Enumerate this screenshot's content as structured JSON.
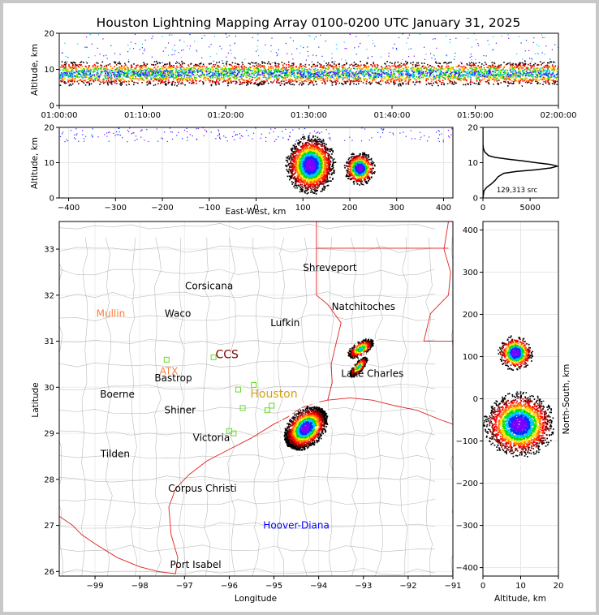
{
  "title": "Houston Lightning Mapping Array 0100-0200 UTC January 31, 2025",
  "colors": {
    "frame_border": "#c8c8c8",
    "state_border": "#e02020",
    "county_border": "#bbbbbb",
    "rainbow": [
      "#7a00ff",
      "#0030ff",
      "#00c8ff",
      "#00e000",
      "#ffe000",
      "#ff7000",
      "#ff0000",
      "#800000",
      "#000000",
      "#ffffff"
    ]
  },
  "chart_data": [
    {
      "type": "scatter",
      "panel": "altitude-time",
      "ylabel": "Altitude, km",
      "ylim": [
        0,
        20
      ],
      "y_ticks": [
        "0",
        "10",
        "20"
      ],
      "x_ticks": [
        "01:00:00",
        "01:10:00",
        "01:20:00",
        "01:30:00",
        "01:40:00",
        "01:50:00",
        "02:00:00"
      ],
      "xlim": [
        "01:00:00",
        "02:00:00"
      ],
      "band_center_km": 9,
      "band_halfwidth_km": 3,
      "sparse_top_km": 20
    },
    {
      "type": "scatter",
      "panel": "altitude-east-west",
      "xlabel": "East-West, km",
      "ylabel": "Altitude, km",
      "xlim": [
        -420,
        420
      ],
      "ylim": [
        0,
        20
      ],
      "x_ticks": [
        "−400",
        "−300",
        "−200",
        "−100",
        "0",
        "100",
        "200",
        "300",
        "400"
      ],
      "y_ticks": [
        "0",
        "10",
        "20"
      ],
      "clusters": [
        {
          "x_center_km": 115,
          "x_halfwidth_km": 45,
          "z_center_km": 9.5,
          "z_halfwidth_km": 7
        },
        {
          "x_center_km": 220,
          "x_halfwidth_km": 28,
          "z_center_km": 8.5,
          "z_halfwidth_km": 4
        }
      ]
    },
    {
      "type": "line",
      "panel": "altitude-histogram",
      "xlim": [
        0,
        8000
      ],
      "ylim": [
        0,
        20
      ],
      "x_ticks": [
        "0",
        "5000"
      ],
      "y_ticks": [
        "0",
        "10",
        "20"
      ],
      "annotation": "129,313 src",
      "altitude_km": [
        0,
        2,
        3,
        4,
        5,
        6,
        7,
        7.5,
        8,
        8.5,
        9,
        9.5,
        10,
        10.5,
        11,
        11.5,
        12,
        13,
        14,
        15,
        16,
        20
      ],
      "source_count": [
        0,
        100,
        400,
        900,
        1300,
        1600,
        2200,
        3500,
        5600,
        7200,
        7900,
        7200,
        5600,
        4200,
        2700,
        1300,
        600,
        200,
        50,
        10,
        0,
        0
      ]
    },
    {
      "type": "scatter",
      "panel": "plan-view-map",
      "xlabel": "Longitude",
      "ylabel": "Latitude",
      "xlim": [
        -99.8,
        -91
      ],
      "ylim": [
        25.9,
        33.6
      ],
      "x_ticks": [
        "−99",
        "−98",
        "−97",
        "−96",
        "−95",
        "−94",
        "−93",
        "−92",
        "−91"
      ],
      "y_ticks": [
        "26",
        "27",
        "28",
        "29",
        "30",
        "31",
        "32",
        "33"
      ],
      "cities": [
        {
          "name": "Shreveport",
          "lon": -93.75,
          "lat": 32.6,
          "color": "#000000"
        },
        {
          "name": "Corsicana",
          "lon": -96.45,
          "lat": 32.2,
          "color": "#000000"
        },
        {
          "name": "Natchitoches",
          "lon": -93.0,
          "lat": 31.75,
          "color": "#000000"
        },
        {
          "name": "Mullin",
          "lon": -98.65,
          "lat": 31.6,
          "color": "#ff8040"
        },
        {
          "name": "Waco",
          "lon": -97.15,
          "lat": 31.6,
          "color": "#000000"
        },
        {
          "name": "Lufkin",
          "lon": -94.75,
          "lat": 31.4,
          "color": "#000000"
        },
        {
          "name": "CCS",
          "lon": -96.05,
          "lat": 30.7,
          "color": "#800000"
        },
        {
          "name": "ATX",
          "lon": -97.35,
          "lat": 30.35,
          "color": "#ff8040"
        },
        {
          "name": "Bastrop",
          "lon": -97.25,
          "lat": 30.2,
          "color": "#000000"
        },
        {
          "name": "Lake Charles",
          "lon": -92.8,
          "lat": 30.3,
          "color": "#000000"
        },
        {
          "name": "Houston",
          "lon": -95.0,
          "lat": 29.85,
          "color": "#d4a017"
        },
        {
          "name": "Boerne",
          "lon": -98.5,
          "lat": 29.85,
          "color": "#000000"
        },
        {
          "name": "Shiner",
          "lon": -97.1,
          "lat": 29.5,
          "color": "#000000"
        },
        {
          "name": "Victoria",
          "lon": -96.4,
          "lat": 28.9,
          "color": "#000000"
        },
        {
          "name": "Tilden",
          "lon": -98.55,
          "lat": 28.55,
          "color": "#000000"
        },
        {
          "name": "Corpus Christi",
          "lon": -96.6,
          "lat": 27.8,
          "color": "#000000"
        },
        {
          "name": "Hoover-Diana",
          "lon": -94.5,
          "lat": 27.0,
          "color": "#0000ff"
        },
        {
          "name": "Port Isabel",
          "lon": -96.75,
          "lat": 26.15,
          "color": "#000000"
        }
      ],
      "stations": [
        {
          "lon": -97.4,
          "lat": 30.6
        },
        {
          "lon": -96.35,
          "lat": 30.65
        },
        {
          "lon": -95.8,
          "lat": 29.95
        },
        {
          "lon": -95.45,
          "lat": 30.05
        },
        {
          "lon": -95.15,
          "lat": 29.5
        },
        {
          "lon": -95.05,
          "lat": 29.6
        },
        {
          "lon": -95.7,
          "lat": 29.55
        },
        {
          "lon": -95.9,
          "lat": 29.0
        },
        {
          "lon": -96.0,
          "lat": 29.05
        }
      ],
      "clusters": [
        {
          "lon_start": -94.75,
          "lat_start": 28.7,
          "lon_end": -93.85,
          "lat_end": 29.55,
          "width_deg": 0.42
        },
        {
          "lon_start": -93.4,
          "lat_start": 30.65,
          "lon_end": -92.75,
          "lat_end": 31.05,
          "width_deg": 0.18
        },
        {
          "lon_start": -93.35,
          "lat_start": 30.2,
          "lon_end": -92.9,
          "lat_end": 30.7,
          "width_deg": 0.12
        }
      ]
    },
    {
      "type": "scatter",
      "panel": "north-south-altitude",
      "xlabel": "Altitude, km",
      "ylabel": "North-South, km",
      "xlim": [
        0,
        20
      ],
      "ylim": [
        -420,
        420
      ],
      "x_ticks": [
        "0",
        "10",
        "20"
      ],
      "y_ticks": [
        "−400",
        "−300",
        "−200",
        "−100",
        "0",
        "100",
        "200",
        "300",
        "400"
      ],
      "clusters": [
        {
          "y_center_km": -60,
          "y_halfwidth_km": 65,
          "z_center_km": 9.5,
          "z_halfwidth_km": 8
        },
        {
          "y_center_km": 110,
          "y_halfwidth_km": 35,
          "z_center_km": 8.5,
          "z_halfwidth_km": 4
        }
      ]
    }
  ]
}
